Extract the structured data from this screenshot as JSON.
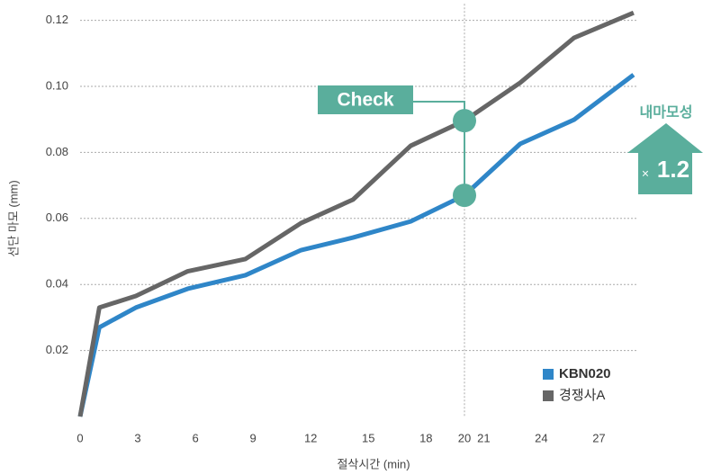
{
  "chart_data": {
    "type": "line",
    "x_label": "절삭시간 (min)",
    "y_label": "선단 마모 (mm)",
    "xlim": [
      0,
      29
    ],
    "ylim": [
      0,
      0.125
    ],
    "xticks": [
      0,
      3,
      6,
      9,
      12,
      15,
      18,
      20,
      21,
      24,
      27
    ],
    "yticks": [
      0.02,
      0.04,
      0.06,
      0.08,
      {
        "value": 0.1,
        "label": "0.10"
      },
      0.12
    ],
    "grid": true,
    "legend": "lower right",
    "x": [
      0,
      1,
      2.9,
      5.6,
      8.6,
      11.5,
      14.2,
      17.2,
      20,
      22.9,
      25.7,
      28.8
    ],
    "series": [
      {
        "name": "KBN020",
        "color": "#2f86c8",
        "values": [
          0,
          0.027,
          0.033,
          0.0387,
          0.0428,
          0.0504,
          0.0542,
          0.0591,
          0.067,
          0.0826,
          0.0899,
          0.1035
        ]
      },
      {
        "name": "경쟁사A",
        "color": "#666666",
        "values": [
          0,
          0.033,
          0.0365,
          0.044,
          0.0477,
          0.0586,
          0.0657,
          0.082,
          0.0896,
          0.1011,
          0.1147,
          0.1223
        ]
      }
    ],
    "annotations": {
      "check": "Check",
      "callout_title": "내마모성",
      "multiplier_symbol": "×",
      "multiplier": "1.2",
      "accent": "#5aae9c"
    }
  }
}
